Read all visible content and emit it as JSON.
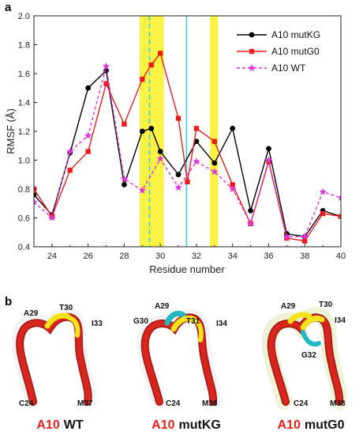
{
  "panel_a_label": "a",
  "panel_b_label": "b",
  "colors": {
    "mutKG": "#000000",
    "mutG0": "#ee1c1c",
    "WT": "#e033e0",
    "highlight_yellow": "#fbf13a",
    "cyan": "#39d0e8",
    "strand_red": "#d8251f",
    "strand_yellow": "#f4e21b",
    "strand_cyan": "#23b7c4"
  },
  "chart_data": {
    "type": "line",
    "xlabel": "Residue number",
    "ylabel": "RMSF (Å)",
    "xlim": [
      23,
      40
    ],
    "ylim": [
      0.4,
      2.0
    ],
    "x_ticks": [
      "24",
      "26",
      "28",
      "30",
      "32",
      "34",
      "36",
      "38",
      "40"
    ],
    "y_ticks": [
      "0.4",
      "0.6",
      "0.8",
      "1.0",
      "1.2",
      "1.4",
      "1.6",
      "1.8",
      "2.0"
    ],
    "legend_position": "top-right",
    "highlight_bands": [
      [
        28.85,
        30.2
      ],
      [
        32.75,
        33.2
      ]
    ],
    "vertical_lines": [
      {
        "x": 29.4,
        "style": "dashed",
        "color": "cyan"
      },
      {
        "x": 31.45,
        "style": "solid",
        "color": "cyan"
      }
    ],
    "x": [
      23,
      24,
      25,
      26,
      27,
      28,
      29,
      29.5,
      30,
      31,
      31.5,
      32,
      33,
      34,
      35,
      36,
      37,
      38,
      39,
      40
    ],
    "series": [
      {
        "name": "A10 mutKG",
        "marker": "circle",
        "line": "solid",
        "values": [
          0.76,
          0.62,
          1.05,
          1.5,
          1.62,
          0.83,
          1.2,
          1.22,
          1.06,
          0.9,
          null,
          1.13,
          0.98,
          1.22,
          0.65,
          1.08,
          0.49,
          0.47,
          0.65,
          0.61
        ]
      },
      {
        "name": "A10 mutG0",
        "marker": "square",
        "line": "solid",
        "values": [
          0.8,
          0.61,
          0.93,
          1.06,
          1.53,
          1.25,
          1.56,
          1.66,
          1.74,
          1.29,
          0.85,
          1.22,
          1.13,
          0.83,
          0.56,
          0.99,
          0.46,
          0.44,
          0.63,
          0.61
        ]
      },
      {
        "name": "A10 WT",
        "marker": "star",
        "line": "dashed",
        "values": [
          0.71,
          0.6,
          1.06,
          1.17,
          1.65,
          0.87,
          0.79,
          null,
          1.01,
          0.81,
          null,
          0.99,
          0.92,
          0.8,
          0.56,
          1.0,
          0.47,
          0.47,
          0.78,
          0.74
        ]
      }
    ]
  },
  "structures": [
    {
      "labels": {
        "top_left": "A29",
        "top_mid": "T30",
        "top_right": "I33",
        "bottom_left": "C24",
        "bottom_right": "M37"
      },
      "caption_prefix": "A10",
      "caption_suffix": "WT"
    },
    {
      "labels": {
        "top_left": "A29",
        "left_mid": "G30",
        "top_mid": "T31",
        "top_right": "I34",
        "bottom_left": "C24",
        "bottom_right": "M38"
      },
      "caption_prefix": "A10",
      "caption_suffix": "mutKG"
    },
    {
      "labels": {
        "top_left": "A29",
        "top_mid": "T30",
        "top_right": "I34",
        "mid_center": "G32",
        "bottom_left": "C24",
        "bottom_right": "M38"
      },
      "caption_prefix": "A10",
      "caption_suffix": "mutG0"
    }
  ]
}
